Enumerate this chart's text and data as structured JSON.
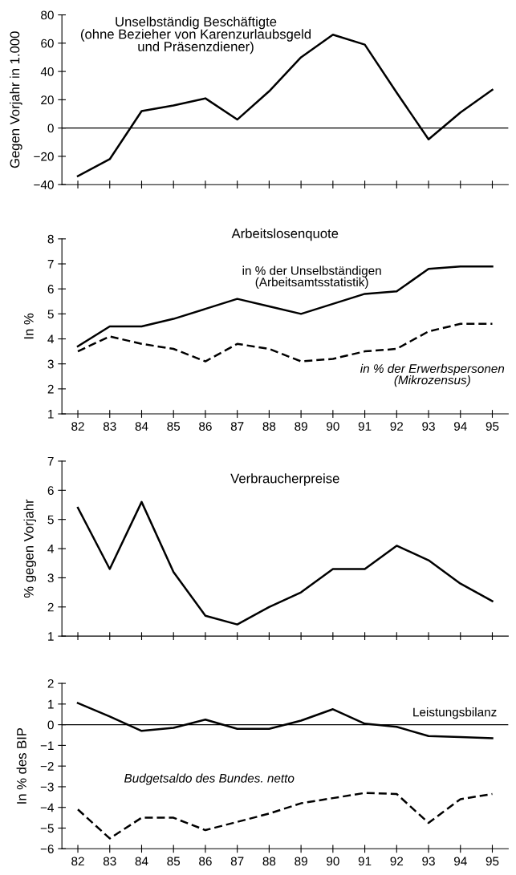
{
  "chart_data": [
    {
      "type": "line",
      "title": "Unselbständig Beschäftigte\n(ohne Bezieher von Karenzurlaubsgeld\nund Präsenzdiener)",
      "ylabel": "Gegen Vorjahr in 1.000",
      "categories": [
        "82",
        "83",
        "84",
        "85",
        "86",
        "87",
        "88",
        "89",
        "90",
        "91",
        "92",
        "93",
        "94",
        "95"
      ],
      "tick_labels": "y",
      "ylim": [
        -40,
        80
      ],
      "yticks": [
        -40,
        -20,
        0,
        20,
        40,
        60,
        80
      ],
      "ref_lines": [
        {
          "axis": "y",
          "value": 0,
          "color": "#000000"
        }
      ],
      "series": [
        {
          "color": "#000000",
          "line_style": "solid",
          "values": [
            -34,
            -22,
            12,
            16,
            21,
            6,
            26,
            50,
            66,
            59,
            25,
            -8,
            11,
            27
          ]
        }
      ]
    },
    {
      "type": "line",
      "title": "Arbeitslosenquote",
      "ylabel": "In %",
      "categories": [
        "82",
        "83",
        "84",
        "85",
        "86",
        "87",
        "88",
        "89",
        "90",
        "91",
        "92",
        "93",
        "94",
        "95"
      ],
      "ylim": [
        1,
        8
      ],
      "yticks": [
        1,
        2,
        3,
        4,
        5,
        6,
        7,
        8
      ],
      "series": [
        {
          "name": "in % der Unselbständigen\n(Arbeitsamtsstatistik)",
          "color": "#000000",
          "line_style": "solid",
          "values": [
            3.7,
            4.5,
            4.5,
            4.8,
            5.2,
            5.6,
            5.3,
            5.0,
            5.4,
            5.8,
            5.9,
            6.8,
            6.9,
            6.9
          ]
        },
        {
          "name": "in % der Erwerbspersonen\n(Mikrozensus)",
          "color": "#000000",
          "line_style": "dashed",
          "values": [
            3.5,
            4.1,
            3.8,
            3.6,
            3.1,
            3.8,
            3.6,
            3.1,
            3.2,
            3.5,
            3.6,
            4.3,
            4.6,
            4.6
          ]
        }
      ]
    },
    {
      "type": "line",
      "title": "Verbraucherpreise",
      "ylabel": "% gegen Vorjahr",
      "categories": [
        "82",
        "83",
        "84",
        "85",
        "86",
        "87",
        "88",
        "89",
        "90",
        "91",
        "92",
        "93",
        "94",
        "95"
      ],
      "tick_labels": "y",
      "ylim": [
        1,
        7
      ],
      "yticks": [
        1,
        2,
        3,
        4,
        5,
        6,
        7
      ],
      "series": [
        {
          "color": "#000000",
          "line_style": "solid",
          "values": [
            5.4,
            3.3,
            5.6,
            3.2,
            1.7,
            1.4,
            2.0,
            2.5,
            3.3,
            3.3,
            4.1,
            3.6,
            2.8,
            2.2
          ]
        }
      ]
    },
    {
      "type": "line",
      "ylabel": "In % des BIP",
      "categories": [
        "82",
        "83",
        "84",
        "85",
        "86",
        "87",
        "88",
        "89",
        "90",
        "91",
        "92",
        "93",
        "94",
        "95"
      ],
      "ylim": [
        -6,
        2
      ],
      "yticks": [
        -6,
        -5,
        -4,
        -3,
        -2,
        -1,
        0,
        1,
        2
      ],
      "ref_lines": [
        {
          "axis": "y",
          "value": 0,
          "color": "#000000"
        }
      ],
      "series": [
        {
          "name": "Leistungsbilanz",
          "color": "#000000",
          "line_style": "solid",
          "values": [
            1.05,
            0.4,
            -0.3,
            -0.15,
            0.25,
            -0.2,
            -0.2,
            0.2,
            0.75,
            0.05,
            -0.1,
            -0.55,
            -0.6,
            -0.65
          ]
        },
        {
          "name": "Budgetsaldo des Bundes. netto",
          "color": "#000000",
          "line_style": "dashed",
          "values": [
            -4.1,
            -5.5,
            -4.5,
            -4.5,
            -5.1,
            -4.7,
            -4.3,
            -3.8,
            -3.55,
            -3.3,
            -3.35,
            -4.75,
            -3.6,
            -3.35
          ]
        }
      ]
    }
  ]
}
